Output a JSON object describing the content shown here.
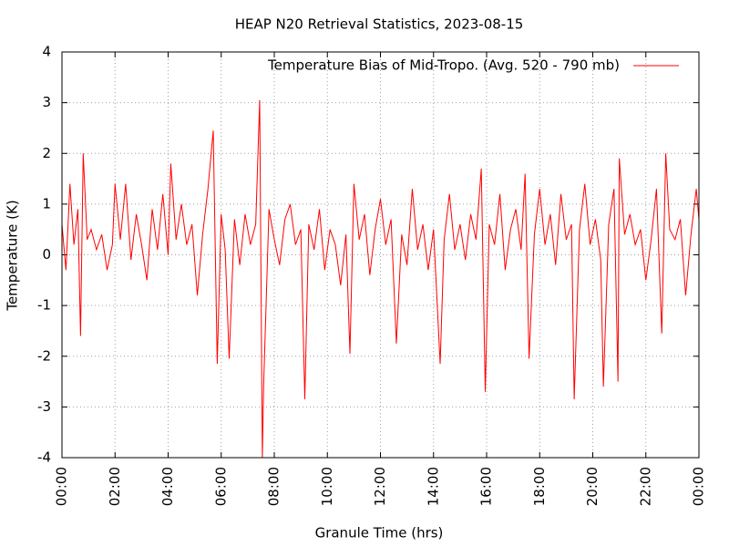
{
  "chart_data": {
    "type": "line",
    "title": "HEAP N20 Retrieval Statistics, 2023-08-15",
    "xlabel": "Granule Time (hrs)",
    "ylabel": "Temperature (K)",
    "x": [
      0,
      0.15,
      0.3,
      0.45,
      0.6,
      0.7,
      0.8,
      0.95,
      1.1,
      1.3,
      1.5,
      1.7,
      1.9,
      2.0,
      2.2,
      2.4,
      2.6,
      2.8,
      3.0,
      3.2,
      3.4,
      3.6,
      3.8,
      4.0,
      4.1,
      4.3,
      4.5,
      4.7,
      4.9,
      5.1,
      5.3,
      5.5,
      5.7,
      5.85,
      6.0,
      6.15,
      6.3,
      6.5,
      6.7,
      6.9,
      7.1,
      7.3,
      7.45,
      7.55,
      7.6,
      7.8,
      8.0,
      8.2,
      8.4,
      8.6,
      8.8,
      9.0,
      9.15,
      9.3,
      9.5,
      9.7,
      9.9,
      10.1,
      10.3,
      10.5,
      10.7,
      10.85,
      11.0,
      11.2,
      11.4,
      11.6,
      11.8,
      12.0,
      12.2,
      12.4,
      12.6,
      12.8,
      13.0,
      13.2,
      13.4,
      13.6,
      13.8,
      14.0,
      14.25,
      14.4,
      14.6,
      14.8,
      15.0,
      15.2,
      15.4,
      15.6,
      15.8,
      15.95,
      16.1,
      16.3,
      16.5,
      16.7,
      16.9,
      17.1,
      17.3,
      17.45,
      17.6,
      17.8,
      18.0,
      18.2,
      18.4,
      18.6,
      18.8,
      19.0,
      19.2,
      19.3,
      19.5,
      19.7,
      19.9,
      20.1,
      20.3,
      20.4,
      20.6,
      20.8,
      20.95,
      21.0,
      21.2,
      21.4,
      21.6,
      21.8,
      22.0,
      22.2,
      22.4,
      22.6,
      22.75,
      22.9,
      23.1,
      23.3,
      23.5,
      23.7,
      23.9,
      24.0
    ],
    "series": [
      {
        "name": "Temperature Bias of Mid-Tropo. (Avg. 520 - 790 mb)",
        "color": "#ff0000",
        "values": [
          0.6,
          -0.3,
          1.4,
          0.2,
          0.9,
          -1.6,
          2.0,
          0.3,
          0.5,
          0.1,
          0.4,
          -0.3,
          0.2,
          1.4,
          0.3,
          1.4,
          -0.1,
          0.8,
          0.2,
          -0.5,
          0.9,
          0.1,
          1.2,
          0.0,
          1.8,
          0.3,
          1.0,
          0.2,
          0.6,
          -0.8,
          0.4,
          1.3,
          2.45,
          -2.15,
          0.8,
          0.1,
          -2.05,
          0.7,
          -0.2,
          0.8,
          0.2,
          0.6,
          3.05,
          -4.0,
          -2.55,
          0.9,
          0.3,
          -0.2,
          0.7,
          1.0,
          0.2,
          0.5,
          -2.85,
          0.6,
          0.1,
          0.9,
          -0.3,
          0.5,
          0.2,
          -0.6,
          0.4,
          -1.95,
          1.4,
          0.3,
          0.8,
          -0.4,
          0.5,
          1.1,
          0.2,
          0.7,
          -1.75,
          0.4,
          -0.2,
          1.3,
          0.1,
          0.6,
          -0.3,
          0.5,
          -2.15,
          0.3,
          1.2,
          0.1,
          0.6,
          -0.1,
          0.8,
          0.3,
          1.7,
          -2.7,
          0.6,
          0.2,
          1.2,
          -0.3,
          0.5,
          0.9,
          0.1,
          1.6,
          -2.05,
          0.4,
          1.3,
          0.2,
          0.8,
          -0.2,
          1.2,
          0.3,
          0.6,
          -2.85,
          0.5,
          1.4,
          0.2,
          0.7,
          -0.1,
          -2.6,
          0.6,
          1.3,
          -2.5,
          1.9,
          0.4,
          0.8,
          0.2,
          0.5,
          -0.5,
          0.3,
          1.3,
          -1.55,
          2.0,
          0.5,
          0.3,
          0.7,
          -0.8,
          0.4,
          1.3,
          0.7
        ]
      }
    ],
    "xlim": [
      0,
      24
    ],
    "xticks": [
      {
        "value": 0,
        "label": "00:00"
      },
      {
        "value": 2,
        "label": "02:00"
      },
      {
        "value": 4,
        "label": "04:00"
      },
      {
        "value": 6,
        "label": "06:00"
      },
      {
        "value": 8,
        "label": "08:00"
      },
      {
        "value": 10,
        "label": "10:00"
      },
      {
        "value": 12,
        "label": "12:00"
      },
      {
        "value": 14,
        "label": "14:00"
      },
      {
        "value": 16,
        "label": "16:00"
      },
      {
        "value": 18,
        "label": "18:00"
      },
      {
        "value": 20,
        "label": "20:00"
      },
      {
        "value": 22,
        "label": "22:00"
      },
      {
        "value": 24,
        "label": "00:00"
      }
    ],
    "ylim": [
      -4,
      4
    ],
    "yticks": [
      -4,
      -3,
      -2,
      -1,
      0,
      1,
      2,
      3,
      4
    ],
    "grid": true,
    "legend": "top-right"
  }
}
